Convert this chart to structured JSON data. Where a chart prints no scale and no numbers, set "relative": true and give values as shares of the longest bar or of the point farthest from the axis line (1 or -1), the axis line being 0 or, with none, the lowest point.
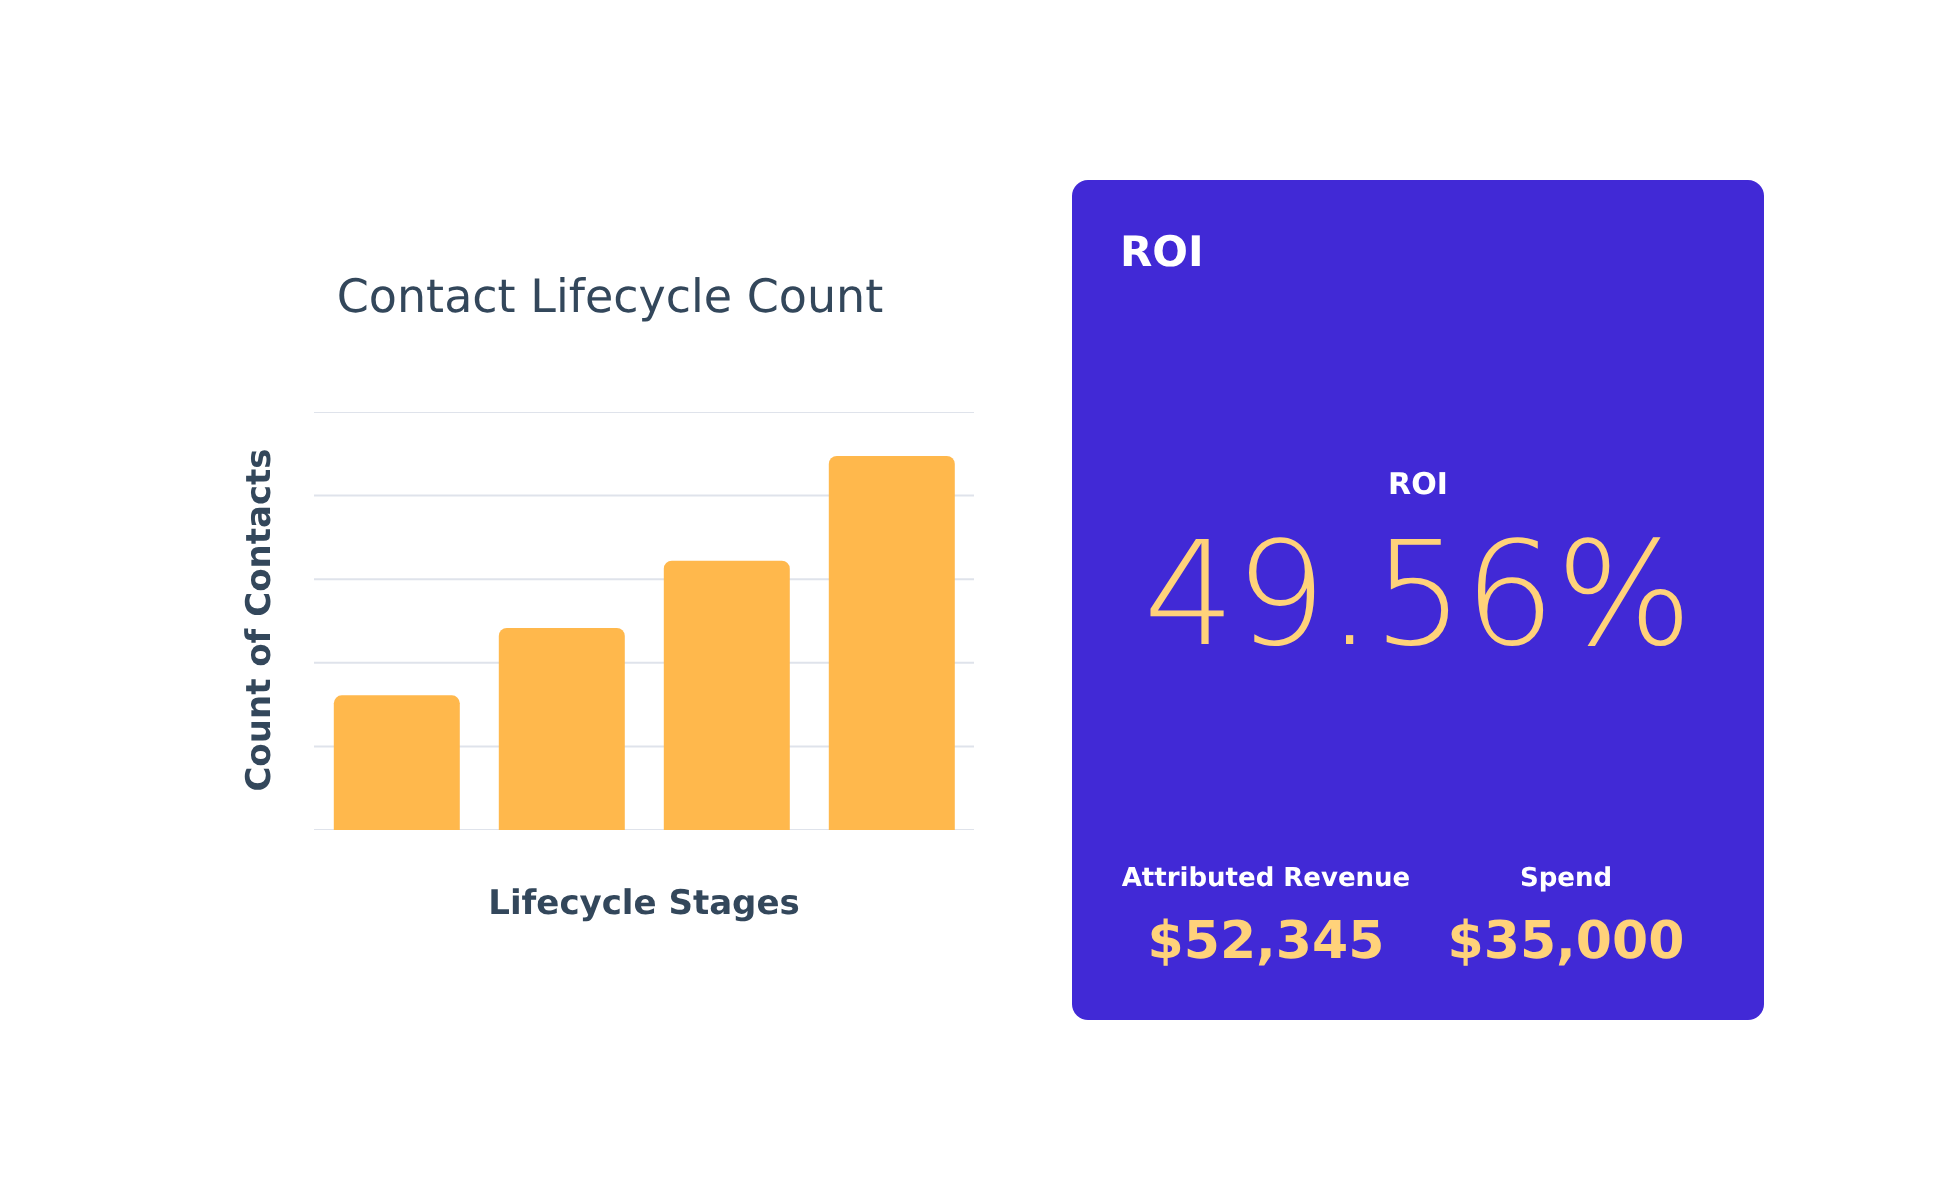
{
  "chart_data": [
    {
      "type": "bar",
      "title": "Contact Lifecycle Count",
      "xlabel": "Lifecycle Stages",
      "ylabel": "Count of Contacts",
      "categories": [
        null,
        null,
        null,
        null
      ],
      "values": [
        0.36,
        0.54,
        0.72,
        1
      ],
      "color": "#ffb84c",
      "relative": true,
      "grid": true
    },
    {
      "type": "other",
      "title": "ROI",
      "annotations": [
        "ROI",
        "49.56%",
        "Attributed Revenue",
        "$52,345",
        "Spend",
        "$35,000"
      ]
    }
  ]
}
